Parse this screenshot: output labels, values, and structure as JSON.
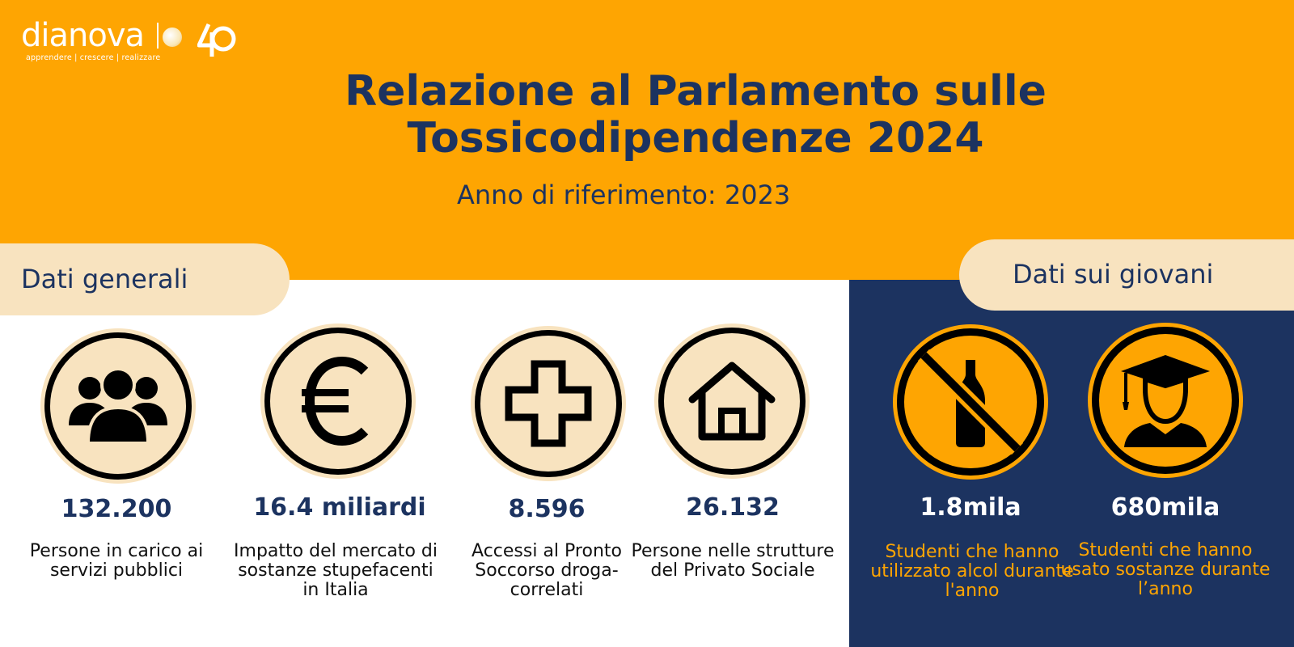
{
  "header": {
    "logo_text": "dianova",
    "logo_tagline": "apprendere | crescere | realizzare",
    "title_line1": "Relazione al Parlamento sulle",
    "title_line2": "Tossicodipendenze 2024",
    "subtitle": "Anno di riferimento: 2023"
  },
  "sections": {
    "general_label": "Dati generali",
    "youth_label": "Dati sui giovani"
  },
  "general_stats": [
    {
      "icon": "people-icon",
      "value": "132.200",
      "description": "Persone in carico ai servizi pubblici"
    },
    {
      "icon": "euro-icon",
      "value": "16.4 miliardi",
      "description": "Impatto del mercato di sostanze stupefacenti in Italia"
    },
    {
      "icon": "medical-cross-icon",
      "value": "8.596",
      "description": "Accessi al Pronto Soccorso droga-correlati"
    },
    {
      "icon": "house-icon",
      "value": "26.132",
      "description": "Persone nelle strutture del Privato Sociale"
    }
  ],
  "youth_stats": [
    {
      "icon": "no-alcohol-icon",
      "value": "1.8mila",
      "description": "Studenti che hanno utilizzato alcol durante l'anno"
    },
    {
      "icon": "graduate-icon",
      "value": "680mila",
      "description": "Studenti che hanno usato sostanze durante l’anno"
    }
  ],
  "colors": {
    "orange": "#fea502",
    "navy": "#1c3360",
    "cream": "#f8e3bf",
    "white": "#ffffff"
  }
}
